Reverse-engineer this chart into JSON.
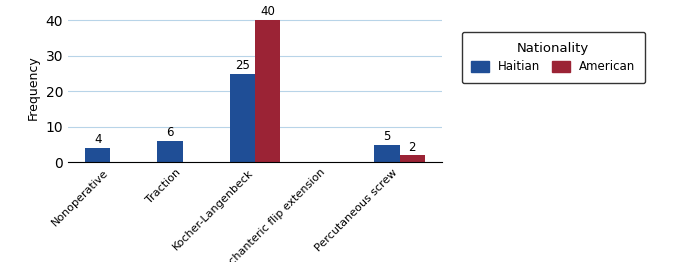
{
  "categories": [
    "Nonoperative",
    "Traction",
    "Kocher-Langenbeck",
    "Trochanteric flip extension",
    "Percutaneous screw"
  ],
  "haitian_values": [
    4,
    6,
    25,
    0,
    5
  ],
  "american_values": [
    0,
    0,
    40,
    0,
    2
  ],
  "haitian_color": "#1F4E96",
  "american_color": "#9B2335",
  "ylabel": "Frequency",
  "ylim": [
    0,
    42
  ],
  "yticks": [
    0,
    10,
    20,
    30,
    40
  ],
  "legend_title": "Nationality",
  "legend_labels": [
    "Haitian",
    "American"
  ],
  "bar_width": 0.35,
  "label_fontsize": 8.5,
  "tick_fontsize": 8,
  "ylabel_fontsize": 9,
  "legend_title_fontsize": 9.5,
  "legend_fontsize": 8.5
}
